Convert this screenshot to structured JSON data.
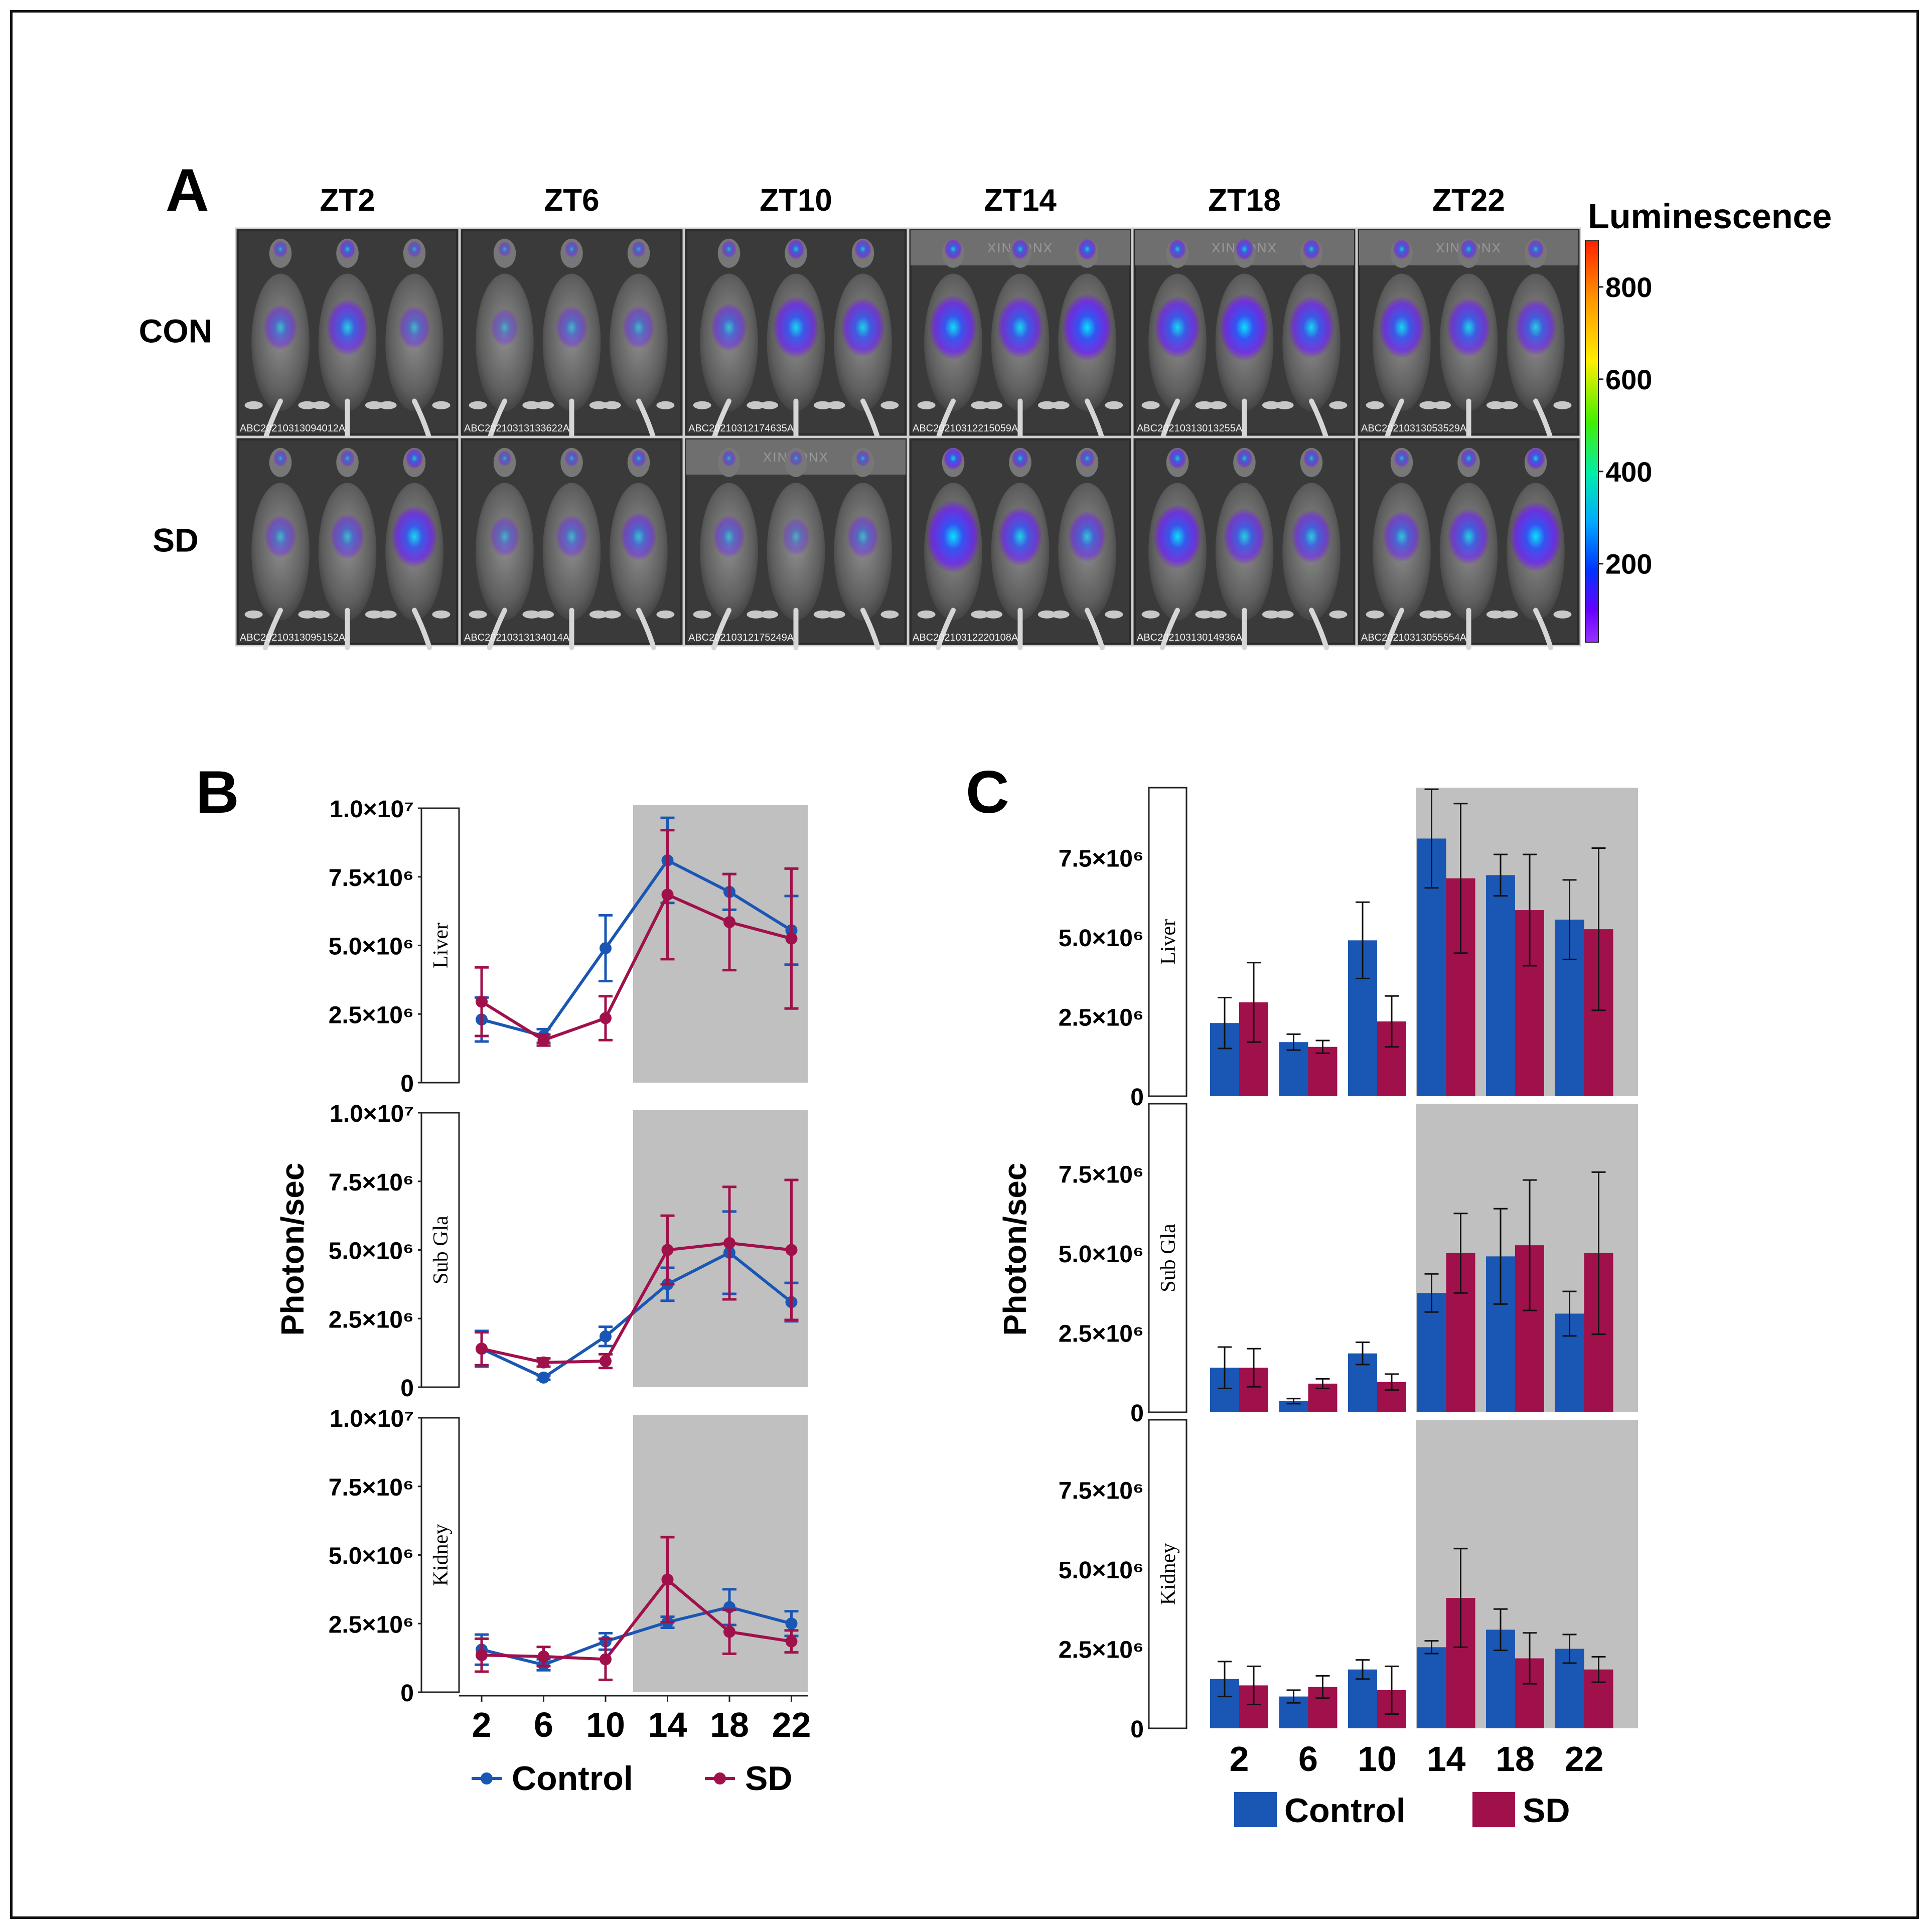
{
  "panels": {
    "a": "A",
    "b": "B",
    "c": "C"
  },
  "imaging": {
    "columns": [
      "ZT2",
      "ZT6",
      "ZT10",
      "ZT14",
      "ZT18",
      "ZT22"
    ],
    "rows": [
      "CON",
      "SD"
    ],
    "image_ids": [
      [
        "ABC20210313094012A",
        "ABC20210313133622A",
        "ABC20210312174635A",
        "ABC20210312215059A",
        "ABC20210313013255A",
        "ABC20210313053529A"
      ],
      [
        "ABC20210313095152A",
        "ABC20210313134014A",
        "ABC20210312175249A",
        "ABC20210312220108A",
        "ABC20210313014936A",
        "ABC20210313055554A"
      ]
    ],
    "watermark": "XINKONX",
    "colorbar": {
      "title": "Luminescence",
      "ticks": [
        800,
        600,
        400,
        200
      ],
      "range": [
        30,
        900
      ],
      "colors": [
        "#ff2200",
        "#ff9900",
        "#ffee00",
        "#44ee00",
        "#00eeaa",
        "#00aaff",
        "#0033ff",
        "#6600ff",
        "#9933ff"
      ]
    },
    "intensity": [
      [
        [
          0.25,
          0.45,
          0.2
        ],
        [
          0.1,
          0.2,
          0.2
        ],
        [
          0.3,
          0.55,
          0.5
        ],
        [
          0.6,
          0.55,
          0.65
        ],
        [
          0.55,
          0.65,
          0.55
        ],
        [
          0.55,
          0.5,
          0.45
        ]
      ],
      [
        [
          0.2,
          0.25,
          0.55
        ],
        [
          0.15,
          0.2,
          0.3
        ],
        [
          0.2,
          0.1,
          0.2
        ],
        [
          0.75,
          0.5,
          0.35
        ],
        [
          0.6,
          0.45,
          0.4
        ],
        [
          0.35,
          0.45,
          0.7
        ]
      ]
    ]
  },
  "colors": {
    "control": "#1a56b4",
    "sd": "#a0104a",
    "night_shade": "#c0c0c0"
  },
  "chart_data": [
    {
      "type": "line",
      "panel": "B",
      "ylabel": "Photon/sec",
      "categories": [
        "2",
        "6",
        "10",
        "14",
        "18",
        "22"
      ],
      "ylim": [
        0,
        10000000
      ],
      "y_ticks": [
        "0",
        "2.5×10⁶",
        "5.0×10⁶",
        "7.5×10⁶",
        "1.0×10⁷"
      ],
      "dark_phase": [
        12,
        24
      ],
      "legend": [
        "Control",
        "SD"
      ],
      "facets": [
        {
          "label": "Liver",
          "series": [
            {
              "name": "Control",
              "values": [
                2300000,
                1700000,
                4900000,
                8100000,
                6950000,
                5550000
              ],
              "errors": [
                800000,
                250000,
                1200000,
                1550000,
                650000,
                1250000
              ]
            },
            {
              "name": "SD",
              "values": [
                2950000,
                1550000,
                2350000,
                6850000,
                5850000,
                5250000
              ],
              "errors": [
                1250000,
                200000,
                800000,
                2350000,
                1750000,
                2550000
              ]
            }
          ]
        },
        {
          "label": "Sub Gla",
          "series": [
            {
              "name": "Control",
              "values": [
                1400000,
                350000,
                1850000,
                3750000,
                4900000,
                3100000
              ],
              "errors": [
                650000,
                80000,
                350000,
                600000,
                1500000,
                700000
              ]
            },
            {
              "name": "SD",
              "values": [
                1400000,
                900000,
                950000,
                5000000,
                5250000,
                5000000
              ],
              "errors": [
                600000,
                150000,
                250000,
                1250000,
                2050000,
                2550000
              ]
            }
          ]
        },
        {
          "label": "Kidney",
          "series": [
            {
              "name": "Control",
              "values": [
                1550000,
                1000000,
                1850000,
                2550000,
                3100000,
                2500000
              ],
              "errors": [
                550000,
                200000,
                300000,
                200000,
                650000,
                450000
              ]
            },
            {
              "name": "SD",
              "values": [
                1350000,
                1300000,
                1200000,
                4100000,
                2200000,
                1850000
              ],
              "errors": [
                600000,
                350000,
                750000,
                1550000,
                800000,
                400000
              ]
            }
          ]
        }
      ]
    },
    {
      "type": "bar",
      "panel": "C",
      "ylabel": "Photon/sec",
      "categories": [
        "2",
        "6",
        "10",
        "14",
        "18",
        "22"
      ],
      "ylim": [
        0,
        9700000
      ],
      "y_ticks": [
        "0",
        "2.5×10⁶",
        "5.0×10⁶",
        "7.5×10⁶"
      ],
      "dark_phase": [
        12,
        24
      ],
      "legend": [
        "Control",
        "SD"
      ],
      "facets": [
        {
          "label": "Liver",
          "series": [
            {
              "name": "Control",
              "values": [
                2300000,
                1700000,
                4900000,
                8100000,
                6950000,
                5550000
              ],
              "errors": [
                800000,
                250000,
                1200000,
                1550000,
                650000,
                1250000
              ]
            },
            {
              "name": "SD",
              "values": [
                2950000,
                1550000,
                2350000,
                6850000,
                5850000,
                5250000
              ],
              "errors": [
                1250000,
                200000,
                800000,
                2350000,
                1750000,
                2550000
              ]
            }
          ]
        },
        {
          "label": "Sub Gla",
          "series": [
            {
              "name": "Control",
              "values": [
                1400000,
                350000,
                1850000,
                3750000,
                4900000,
                3100000
              ],
              "errors": [
                650000,
                80000,
                350000,
                600000,
                1500000,
                700000
              ]
            },
            {
              "name": "SD",
              "values": [
                1400000,
                900000,
                950000,
                5000000,
                5250000,
                5000000
              ],
              "errors": [
                600000,
                150000,
                250000,
                1250000,
                2050000,
                2550000
              ]
            }
          ]
        },
        {
          "label": "Kidney",
          "series": [
            {
              "name": "Control",
              "values": [
                1550000,
                1000000,
                1850000,
                2550000,
                3100000,
                2500000
              ],
              "errors": [
                550000,
                200000,
                300000,
                200000,
                650000,
                450000
              ]
            },
            {
              "name": "SD",
              "values": [
                1350000,
                1300000,
                1200000,
                4100000,
                2200000,
                1850000
              ],
              "errors": [
                600000,
                350000,
                750000,
                1550000,
                800000,
                400000
              ]
            }
          ]
        }
      ]
    }
  ]
}
